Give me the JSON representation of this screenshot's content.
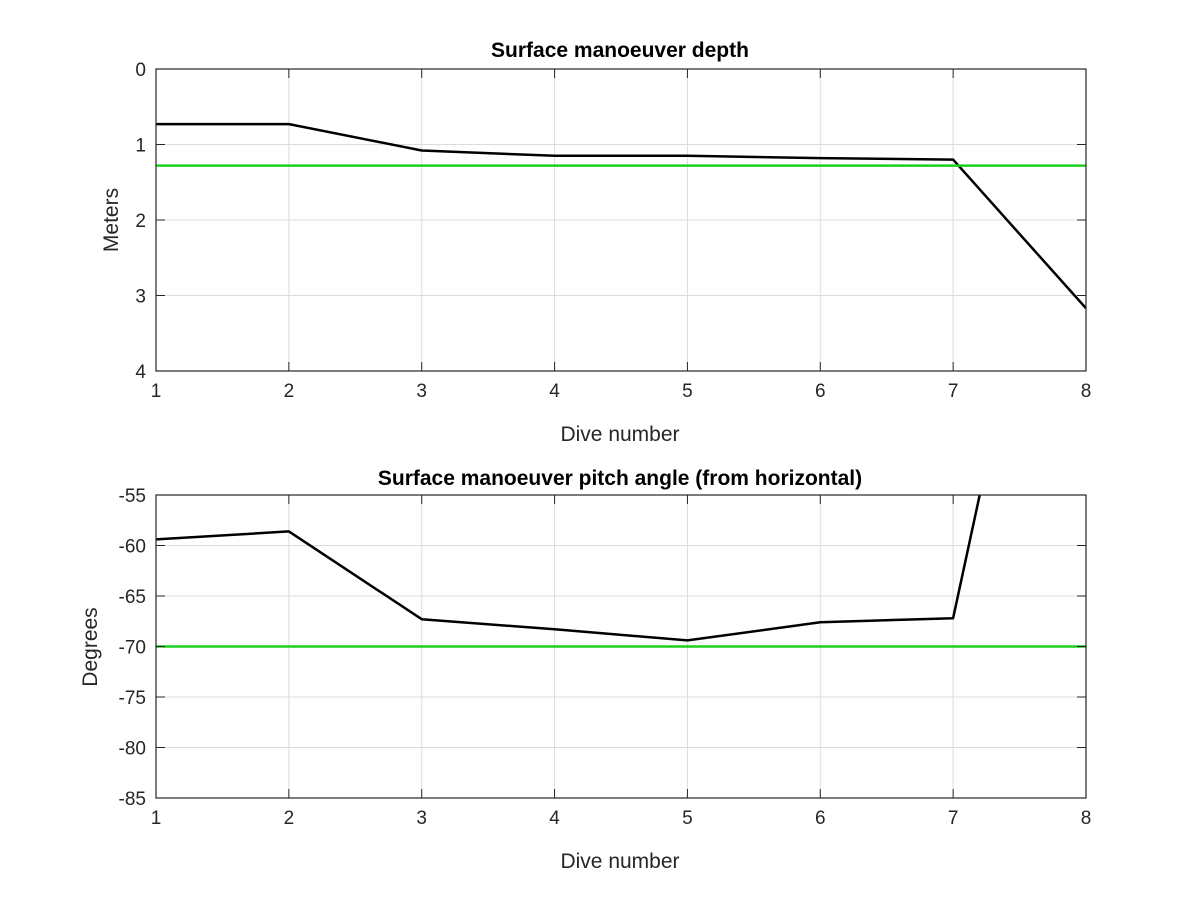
{
  "chart_data": [
    {
      "type": "line",
      "title": "Surface manoeuver depth",
      "xlabel": "Dive number",
      "ylabel": "Meters",
      "xlim": [
        1,
        8
      ],
      "ylim": [
        0,
        4
      ],
      "y_reversed": true,
      "xticks": [
        "1",
        "2",
        "3",
        "4",
        "5",
        "6",
        "7",
        "8"
      ],
      "yticks": [
        "0",
        "1",
        "2",
        "3",
        "4"
      ],
      "grid": true,
      "series": [
        {
          "color": "#000000",
          "x": [
            1,
            2,
            3,
            4,
            5,
            6,
            7,
            8
          ],
          "y": [
            0.73,
            0.73,
            1.08,
            1.15,
            1.15,
            1.18,
            1.2,
            3.17
          ]
        },
        {
          "color": "#1fcf1f",
          "x": [
            1,
            8
          ],
          "y": [
            1.28,
            1.28
          ]
        }
      ]
    },
    {
      "type": "line",
      "title": "Surface manoeuver pitch angle (from horizontal)",
      "xlabel": "Dive number",
      "ylabel": "Degrees",
      "xlim": [
        1,
        8
      ],
      "ylim": [
        -85,
        -55
      ],
      "xticks": [
        "1",
        "2",
        "3",
        "4",
        "5",
        "6",
        "7",
        "8"
      ],
      "yticks": [
        "-55",
        "-60",
        "-65",
        "-70",
        "-75",
        "-80",
        "-85"
      ],
      "grid": true,
      "series": [
        {
          "color": "#000000",
          "x": [
            1,
            2,
            3,
            4,
            5,
            6,
            7,
            7.2
          ],
          "y": [
            -59.4,
            -58.6,
            -67.3,
            -68.3,
            -69.4,
            -67.6,
            -67.2,
            -55
          ]
        },
        {
          "color": "#1fcf1f",
          "x": [
            1,
            8
          ],
          "y": [
            -70,
            -70
          ]
        }
      ]
    }
  ]
}
